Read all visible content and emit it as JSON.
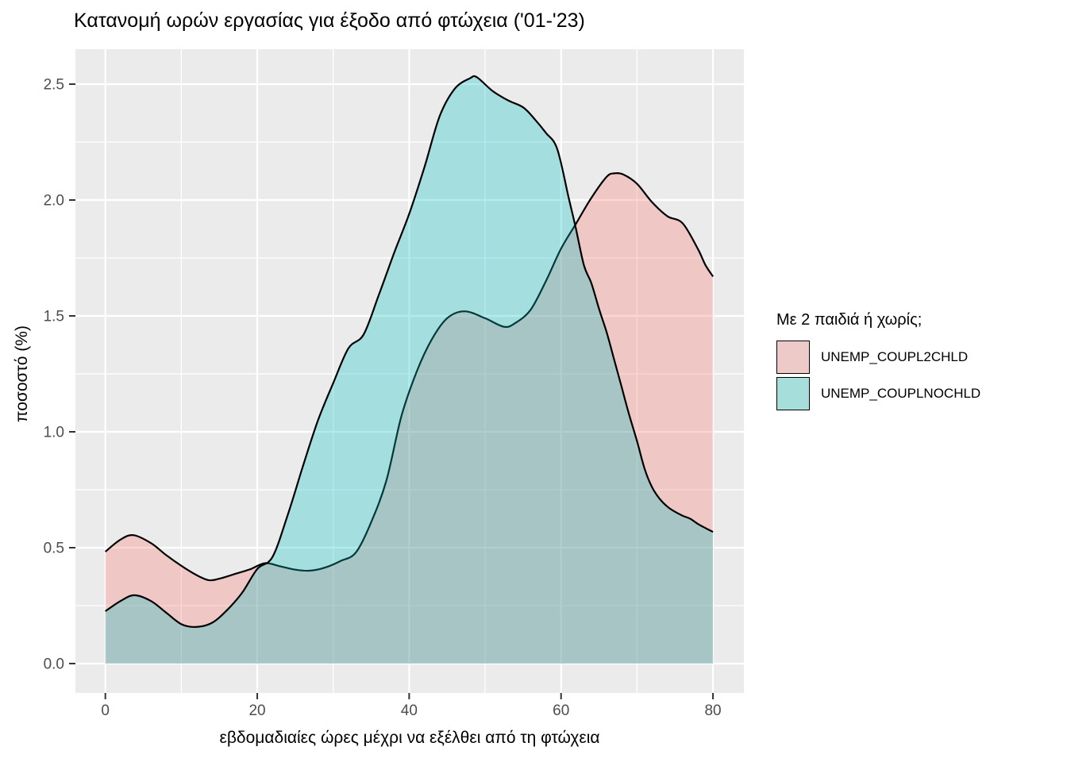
{
  "title": "Κατανομή ωρών εργασίας για έξοδο από φτώχεια ('01-'23)",
  "axes": {
    "x_title": "εβδομαδιαίες ώρες μέχρι να εξέλθει από τη φτώχεια",
    "y_title": "ποσοστό (%)"
  },
  "legend": {
    "title": "Με 2 παιδιά ή χωρίς;",
    "items": [
      {
        "label": "UNEMP_COUPL2CHLD",
        "swatch_color": "#EDCAC8"
      },
      {
        "label": "UNEMP_COUPLNOCHLD",
        "swatch_color": "#A5DEDB"
      }
    ]
  },
  "colors": {
    "panel_background": "#EBEBEB",
    "gridline": "#FFFFFF",
    "tick_label": "#4D4D4D",
    "tick_mark": "#333333",
    "outline": "#000000"
  },
  "chart_data": {
    "type": "area",
    "subtype": "overlapping-density",
    "title": "Κατανομή ωρών εργασίας για έξοδο από φτώχεια ('01-'23)",
    "xlabel": "εβδομαδιαίες ώρες μέχρι να εξέλθει από τη φτώχεια",
    "ylabel": "ποσοστό (%)",
    "xlim": [
      0,
      80
    ],
    "ylim": [
      0,
      2.6
    ],
    "grid": "white major+minor on grey panel",
    "legend_position": "right",
    "legend_title": "Με 2 παιδιά ή χωρίς;",
    "x_ticks": {
      "values": [
        0,
        20,
        40,
        60,
        80
      ],
      "labels": [
        "0",
        "20",
        "40",
        "60",
        "80"
      ]
    },
    "y_ticks": {
      "values": [
        0,
        0.5,
        1.0,
        1.5,
        2.0,
        2.5
      ],
      "labels": [
        "0.0",
        "0.5",
        "1.0",
        "1.5",
        "2.0",
        "2.5"
      ]
    },
    "series": [
      {
        "name": "UNEMP_COUPL2CHLD",
        "fill": "#F8766D",
        "fill_opacity": 0.3,
        "outline": "#000000",
        "points": [
          [
            0,
            0.483
          ],
          [
            2,
            0.535
          ],
          [
            3.7,
            0.554
          ],
          [
            6,
            0.52
          ],
          [
            8,
            0.468
          ],
          [
            10,
            0.422
          ],
          [
            12,
            0.382
          ],
          [
            13.6,
            0.36
          ],
          [
            15,
            0.366
          ],
          [
            17,
            0.386
          ],
          [
            19,
            0.406
          ],
          [
            21,
            0.433
          ],
          [
            23,
            0.42
          ],
          [
            25,
            0.405
          ],
          [
            27,
            0.401
          ],
          [
            29,
            0.415
          ],
          [
            31,
            0.443
          ],
          [
            33,
            0.48
          ],
          [
            35,
            0.61
          ],
          [
            37,
            0.79
          ],
          [
            39,
            1.07
          ],
          [
            41,
            1.26
          ],
          [
            43,
            1.4
          ],
          [
            45,
            1.49
          ],
          [
            47.3,
            1.52
          ],
          [
            50,
            1.49
          ],
          [
            52.5,
            1.453
          ],
          [
            54,
            1.47
          ],
          [
            56,
            1.527
          ],
          [
            58,
            1.65
          ],
          [
            60,
            1.79
          ],
          [
            62,
            1.9
          ],
          [
            64,
            2.01
          ],
          [
            66,
            2.1
          ],
          [
            67,
            2.115
          ],
          [
            68.2,
            2.11
          ],
          [
            70,
            2.07
          ],
          [
            72,
            1.99
          ],
          [
            74,
            1.93
          ],
          [
            76,
            1.9
          ],
          [
            78,
            1.79
          ],
          [
            79,
            1.72
          ],
          [
            80,
            1.67
          ]
        ]
      },
      {
        "name": "UNEMP_COUPLNOCHLD",
        "fill": "#00BFC4",
        "fill_opacity": 0.3,
        "outline": "#000000",
        "points": [
          [
            0,
            0.226
          ],
          [
            2,
            0.27
          ],
          [
            3.8,
            0.295
          ],
          [
            6,
            0.27
          ],
          [
            8,
            0.22
          ],
          [
            10,
            0.17
          ],
          [
            11.9,
            0.158
          ],
          [
            14,
            0.175
          ],
          [
            16,
            0.23
          ],
          [
            18,
            0.305
          ],
          [
            20,
            0.408
          ],
          [
            22,
            0.46
          ],
          [
            24,
            0.64
          ],
          [
            26,
            0.85
          ],
          [
            28,
            1.05
          ],
          [
            30,
            1.21
          ],
          [
            32,
            1.36
          ],
          [
            34,
            1.42
          ],
          [
            36,
            1.59
          ],
          [
            38,
            1.77
          ],
          [
            40,
            1.94
          ],
          [
            42,
            2.14
          ],
          [
            44,
            2.36
          ],
          [
            46,
            2.48
          ],
          [
            48,
            2.525
          ],
          [
            48.9,
            2.53
          ],
          [
            51,
            2.47
          ],
          [
            53,
            2.43
          ],
          [
            55,
            2.4
          ],
          [
            56.5,
            2.35
          ],
          [
            58,
            2.29
          ],
          [
            59.5,
            2.22
          ],
          [
            61,
            2.01
          ],
          [
            61.9,
            1.885
          ],
          [
            63,
            1.72
          ],
          [
            64,
            1.64
          ],
          [
            65,
            1.53
          ],
          [
            66,
            1.43
          ],
          [
            67,
            1.31
          ],
          [
            68,
            1.19
          ],
          [
            69,
            1.07
          ],
          [
            70,
            0.96
          ],
          [
            71,
            0.84
          ],
          [
            72,
            0.76
          ],
          [
            73,
            0.71
          ],
          [
            74,
            0.677
          ],
          [
            75,
            0.655
          ],
          [
            76,
            0.638
          ],
          [
            77,
            0.625
          ],
          [
            78,
            0.603
          ],
          [
            79,
            0.585
          ],
          [
            80,
            0.568
          ]
        ]
      }
    ]
  }
}
